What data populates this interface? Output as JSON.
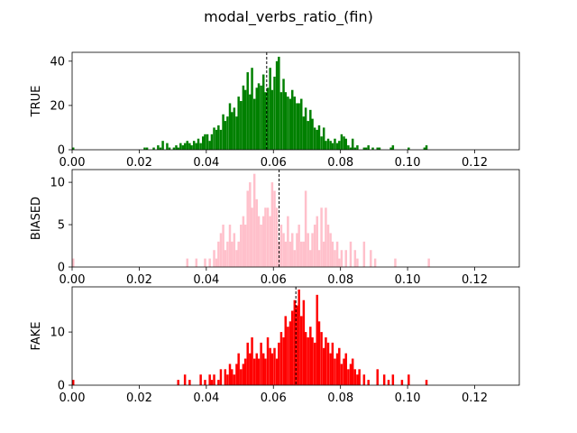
{
  "figure_title": "modal_verbs_ratio_(fin)",
  "chart_data": [
    {
      "type": "bar",
      "name": "TRUE",
      "ylabel": "TRUE",
      "color": "#008000",
      "mean_line": 0.058,
      "xlim": [
        0,
        0.1333
      ],
      "ylim": [
        0,
        44
      ],
      "xticks": [
        "0.00",
        "0.02",
        "0.04",
        "0.06",
        "0.08",
        "0.10",
        "0.12"
      ],
      "xtick_values": [
        0,
        0.02,
        0.04,
        0.06,
        0.08,
        0.1,
        0.12
      ],
      "yticks": [
        "0",
        "20",
        "40"
      ],
      "ytick_values": [
        0,
        20,
        40
      ],
      "bin_width": 0.000667,
      "bins": [
        [
          0.0,
          1
        ],
        [
          0.0213,
          1
        ],
        [
          0.022,
          1
        ],
        [
          0.024,
          1
        ],
        [
          0.0253,
          2
        ],
        [
          0.026,
          1
        ],
        [
          0.0267,
          4
        ],
        [
          0.028,
          3
        ],
        [
          0.0287,
          1
        ],
        [
          0.03,
          1
        ],
        [
          0.0307,
          2
        ],
        [
          0.0313,
          1
        ],
        [
          0.032,
          3
        ],
        [
          0.0327,
          2
        ],
        [
          0.0333,
          3
        ],
        [
          0.034,
          4
        ],
        [
          0.0347,
          3
        ],
        [
          0.0353,
          2
        ],
        [
          0.036,
          4
        ],
        [
          0.0367,
          3
        ],
        [
          0.0373,
          5
        ],
        [
          0.038,
          3
        ],
        [
          0.0387,
          6
        ],
        [
          0.0393,
          7
        ],
        [
          0.04,
          7
        ],
        [
          0.0407,
          4
        ],
        [
          0.0413,
          7
        ],
        [
          0.042,
          10
        ],
        [
          0.0427,
          9
        ],
        [
          0.0433,
          11
        ],
        [
          0.044,
          9
        ],
        [
          0.0447,
          16
        ],
        [
          0.0453,
          13
        ],
        [
          0.046,
          15
        ],
        [
          0.0467,
          21
        ],
        [
          0.0473,
          17
        ],
        [
          0.048,
          19
        ],
        [
          0.0487,
          15
        ],
        [
          0.0493,
          24
        ],
        [
          0.05,
          22
        ],
        [
          0.0507,
          29
        ],
        [
          0.0513,
          27
        ],
        [
          0.052,
          35
        ],
        [
          0.0527,
          25
        ],
        [
          0.0533,
          37
        ],
        [
          0.054,
          23
        ],
        [
          0.0547,
          28
        ],
        [
          0.0553,
          30
        ],
        [
          0.056,
          29
        ],
        [
          0.0567,
          34
        ],
        [
          0.0573,
          26
        ],
        [
          0.058,
          28
        ],
        [
          0.0587,
          37
        ],
        [
          0.0593,
          27
        ],
        [
          0.06,
          33
        ],
        [
          0.0607,
          40
        ],
        [
          0.0613,
          42
        ],
        [
          0.062,
          26
        ],
        [
          0.0627,
          32
        ],
        [
          0.0633,
          26
        ],
        [
          0.064,
          24
        ],
        [
          0.0647,
          23
        ],
        [
          0.0653,
          27
        ],
        [
          0.066,
          24
        ],
        [
          0.0667,
          21
        ],
        [
          0.0673,
          21
        ],
        [
          0.068,
          23
        ],
        [
          0.0687,
          15
        ],
        [
          0.0693,
          19
        ],
        [
          0.07,
          13
        ],
        [
          0.0707,
          18
        ],
        [
          0.0713,
          14
        ],
        [
          0.072,
          10
        ],
        [
          0.0727,
          9
        ],
        [
          0.0733,
          11
        ],
        [
          0.074,
          6
        ],
        [
          0.0747,
          10
        ],
        [
          0.0753,
          4
        ],
        [
          0.076,
          5
        ],
        [
          0.0767,
          4
        ],
        [
          0.0773,
          3
        ],
        [
          0.078,
          5
        ],
        [
          0.0787,
          3
        ],
        [
          0.0793,
          4
        ],
        [
          0.08,
          7
        ],
        [
          0.0807,
          6
        ],
        [
          0.0813,
          5
        ],
        [
          0.082,
          2
        ],
        [
          0.0827,
          1
        ],
        [
          0.0833,
          5
        ],
        [
          0.084,
          1
        ],
        [
          0.0847,
          2
        ],
        [
          0.0867,
          1
        ],
        [
          0.0873,
          1
        ],
        [
          0.088,
          2
        ],
        [
          0.0893,
          1
        ],
        [
          0.0907,
          1
        ],
        [
          0.0913,
          1
        ],
        [
          0.0947,
          1
        ],
        [
          0.0953,
          2
        ],
        [
          0.1,
          1
        ],
        [
          0.1047,
          1
        ],
        [
          0.1053,
          2
        ]
      ]
    },
    {
      "type": "bar",
      "name": "BIASED",
      "ylabel": "BIASED",
      "color": "#ffc0cb",
      "mean_line": 0.0617,
      "xlim": [
        0,
        0.1333
      ],
      "ylim": [
        0,
        11.5
      ],
      "xticks": [
        "0.00",
        "0.02",
        "0.04",
        "0.06",
        "0.08",
        "0.10",
        "0.12"
      ],
      "xtick_values": [
        0,
        0.02,
        0.04,
        0.06,
        0.08,
        0.1,
        0.12
      ],
      "yticks": [
        "0",
        "5",
        "10"
      ],
      "ytick_values": [
        0,
        5,
        10
      ],
      "bin_width": 0.000667,
      "bins": [
        [
          0.0,
          1
        ],
        [
          0.034,
          1
        ],
        [
          0.0367,
          1
        ],
        [
          0.0393,
          1
        ],
        [
          0.0407,
          1
        ],
        [
          0.042,
          2
        ],
        [
          0.0427,
          1
        ],
        [
          0.0433,
          3
        ],
        [
          0.044,
          4
        ],
        [
          0.0447,
          5
        ],
        [
          0.0453,
          2
        ],
        [
          0.046,
          3
        ],
        [
          0.0467,
          5
        ],
        [
          0.0473,
          3
        ],
        [
          0.048,
          4
        ],
        [
          0.0487,
          2
        ],
        [
          0.0493,
          3
        ],
        [
          0.05,
          5
        ],
        [
          0.0507,
          6
        ],
        [
          0.0513,
          5
        ],
        [
          0.052,
          9
        ],
        [
          0.0527,
          10
        ],
        [
          0.0533,
          7
        ],
        [
          0.054,
          11
        ],
        [
          0.0547,
          8
        ],
        [
          0.0553,
          6
        ],
        [
          0.056,
          5
        ],
        [
          0.0567,
          6
        ],
        [
          0.0573,
          7
        ],
        [
          0.058,
          7
        ],
        [
          0.0587,
          6
        ],
        [
          0.0593,
          10
        ],
        [
          0.06,
          9
        ],
        [
          0.0607,
          7
        ],
        [
          0.0613,
          3
        ],
        [
          0.062,
          5
        ],
        [
          0.0627,
          4
        ],
        [
          0.0633,
          3
        ],
        [
          0.064,
          6
        ],
        [
          0.0647,
          3
        ],
        [
          0.0653,
          4
        ],
        [
          0.066,
          2
        ],
        [
          0.0667,
          4
        ],
        [
          0.0673,
          5
        ],
        [
          0.068,
          3
        ],
        [
          0.0687,
          3
        ],
        [
          0.0693,
          9
        ],
        [
          0.07,
          4
        ],
        [
          0.0707,
          2
        ],
        [
          0.0713,
          4
        ],
        [
          0.072,
          5
        ],
        [
          0.0727,
          6
        ],
        [
          0.0733,
          2
        ],
        [
          0.074,
          7
        ],
        [
          0.0747,
          3
        ],
        [
          0.0753,
          7
        ],
        [
          0.076,
          5
        ],
        [
          0.0767,
          4
        ],
        [
          0.0773,
          3
        ],
        [
          0.078,
          2
        ],
        [
          0.0787,
          3
        ],
        [
          0.0793,
          1
        ],
        [
          0.08,
          2
        ],
        [
          0.0813,
          2
        ],
        [
          0.0827,
          3
        ],
        [
          0.084,
          2
        ],
        [
          0.0847,
          1
        ],
        [
          0.0867,
          3
        ],
        [
          0.0887,
          2
        ],
        [
          0.09,
          1
        ],
        [
          0.096,
          1
        ],
        [
          0.106,
          1
        ]
      ]
    },
    {
      "type": "bar",
      "name": "FAKE",
      "ylabel": "FAKE",
      "color": "#ff0000",
      "mean_line": 0.0667,
      "xlim": [
        0,
        0.1333
      ],
      "ylim": [
        0,
        18.5
      ],
      "xticks": [
        "0.00",
        "0.02",
        "0.04",
        "0.06",
        "0.08",
        "0.10",
        "0.12"
      ],
      "xtick_values": [
        0,
        0.02,
        0.04,
        0.06,
        0.08,
        0.1,
        0.12
      ],
      "yticks": [
        "0",
        "10"
      ],
      "ytick_values": [
        0,
        10
      ],
      "bin_width": 0.000667,
      "bins": [
        [
          0.0,
          1
        ],
        [
          0.0313,
          1
        ],
        [
          0.0333,
          2
        ],
        [
          0.0347,
          1
        ],
        [
          0.038,
          2
        ],
        [
          0.0393,
          1
        ],
        [
          0.0407,
          2
        ],
        [
          0.0413,
          1
        ],
        [
          0.042,
          2
        ],
        [
          0.0433,
          1
        ],
        [
          0.044,
          3
        ],
        [
          0.0453,
          3
        ],
        [
          0.046,
          2
        ],
        [
          0.0467,
          4
        ],
        [
          0.0473,
          3
        ],
        [
          0.048,
          2
        ],
        [
          0.0487,
          4
        ],
        [
          0.0493,
          6
        ],
        [
          0.05,
          3
        ],
        [
          0.0507,
          4
        ],
        [
          0.0513,
          5
        ],
        [
          0.052,
          8
        ],
        [
          0.0527,
          6
        ],
        [
          0.0533,
          9
        ],
        [
          0.054,
          5
        ],
        [
          0.0547,
          6
        ],
        [
          0.0553,
          5
        ],
        [
          0.056,
          8
        ],
        [
          0.0567,
          6
        ],
        [
          0.0573,
          5
        ],
        [
          0.058,
          9
        ],
        [
          0.0587,
          7
        ],
        [
          0.0593,
          6
        ],
        [
          0.06,
          7
        ],
        [
          0.0607,
          5
        ],
        [
          0.0613,
          8
        ],
        [
          0.062,
          10
        ],
        [
          0.0627,
          9
        ],
        [
          0.0633,
          13
        ],
        [
          0.064,
          11
        ],
        [
          0.0647,
          12
        ],
        [
          0.0653,
          14
        ],
        [
          0.066,
          16
        ],
        [
          0.0667,
          15
        ],
        [
          0.0673,
          18
        ],
        [
          0.068,
          13
        ],
        [
          0.0687,
          16
        ],
        [
          0.0693,
          10
        ],
        [
          0.07,
          9
        ],
        [
          0.0707,
          11
        ],
        [
          0.0713,
          9
        ],
        [
          0.072,
          8
        ],
        [
          0.0727,
          17
        ],
        [
          0.0733,
          12
        ],
        [
          0.074,
          10
        ],
        [
          0.0747,
          7
        ],
        [
          0.0753,
          9
        ],
        [
          0.076,
          8
        ],
        [
          0.0767,
          6
        ],
        [
          0.0773,
          8
        ],
        [
          0.078,
          5
        ],
        [
          0.0787,
          6
        ],
        [
          0.0793,
          7
        ],
        [
          0.08,
          4
        ],
        [
          0.0807,
          5
        ],
        [
          0.0813,
          6
        ],
        [
          0.082,
          3
        ],
        [
          0.0827,
          4
        ],
        [
          0.0833,
          5
        ],
        [
          0.084,
          3
        ],
        [
          0.0847,
          2
        ],
        [
          0.0853,
          3
        ],
        [
          0.0867,
          2
        ],
        [
          0.088,
          1
        ],
        [
          0.0907,
          3
        ],
        [
          0.0927,
          2
        ],
        [
          0.094,
          1
        ],
        [
          0.0953,
          2
        ],
        [
          0.098,
          1
        ],
        [
          0.1,
          2
        ],
        [
          0.1053,
          1
        ]
      ]
    }
  ]
}
